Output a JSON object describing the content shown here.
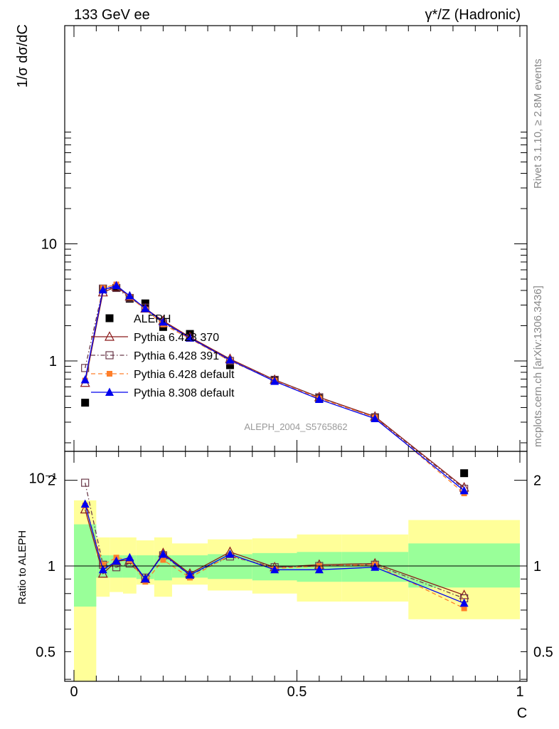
{
  "header": {
    "left": "133 GeV ee",
    "right": "γ*/Z (Hadronic)"
  },
  "side": {
    "rivet": "Rivet 3.1.10, ≥ 2.8M events",
    "mcplots": "mcplots.cern.ch [arXiv:1306.3436]"
  },
  "analysis_id": "ALEPH_2004_S5765862",
  "colors": {
    "data": "#000000",
    "p370": "#8b1a1a",
    "p391": "#6b3a4a",
    "p6def": "#ff7f2a",
    "p8def": "#0000ee",
    "band_inner": "#99ff99",
    "band_outer": "#ffff99"
  },
  "chart_data": [
    {
      "type": "line",
      "panel": "main",
      "ylabel": "1/σ  dσ/dC",
      "xlim": [
        0,
        1
      ],
      "ylim": [
        0.02,
        90
      ],
      "yscale": "log",
      "yticks": [
        "10⁻¹",
        "1",
        "10"
      ],
      "legend_position": "lower-left",
      "x": [
        0.025,
        0.065,
        0.095,
        0.125,
        0.16,
        0.2,
        0.26,
        0.35,
        0.45,
        0.55,
        0.675,
        0.875
      ],
      "series": [
        {
          "name": "ALEPH",
          "key": "data",
          "marker": "square-filled",
          "values": [
            0.44,
            4.1,
            4.2,
            3.4,
            3.1,
            1.95,
            1.7,
            0.92,
            0.69,
            0.48,
            0.33,
            0.11
          ]
        },
        {
          "name": "Pythia 6.428 370",
          "key": "p370",
          "marker": "triangle-open",
          "dash": "solid",
          "values": [
            0.65,
            3.85,
            4.3,
            3.55,
            2.8,
            2.2,
            1.6,
            1.04,
            0.69,
            0.49,
            0.335,
            0.083
          ]
        },
        {
          "name": "Pythia 6.428 391",
          "key": "p391",
          "marker": "square-open",
          "dash": "dashdot",
          "values": [
            0.87,
            4.15,
            4.2,
            3.45,
            2.85,
            2.1,
            1.58,
            1.0,
            0.69,
            0.49,
            0.33,
            0.081
          ]
        },
        {
          "name": "Pythia 6.428 default",
          "key": "p6def",
          "marker": "square-filled-small",
          "dash": "dashed",
          "values": [
            0.68,
            4.2,
            4.5,
            3.5,
            2.75,
            2.05,
            1.55,
            1.0,
            0.68,
            0.48,
            0.33,
            0.074
          ]
        },
        {
          "name": "Pythia 8.308 default",
          "key": "p8def",
          "marker": "triangle-filled",
          "dash": "solid",
          "values": [
            0.69,
            4.05,
            4.4,
            3.6,
            2.8,
            2.15,
            1.57,
            1.02,
            0.67,
            0.47,
            0.322,
            0.078
          ]
        }
      ]
    },
    {
      "type": "line",
      "panel": "ratio",
      "xlabel": "C",
      "ylabel": "Ratio to ALEPH",
      "xlim": [
        0,
        1
      ],
      "ylim": [
        0.35,
        2.35
      ],
      "yscale": "log",
      "xticks": [
        "0",
        "0.5",
        "1"
      ],
      "yticks": [
        "0.5",
        "1",
        "2"
      ],
      "bands": {
        "edges": [
          0,
          0.05,
          0.08,
          0.11,
          0.14,
          0.18,
          0.22,
          0.3,
          0.4,
          0.5,
          0.6,
          0.75,
          1.0
        ],
        "inner": [
          [
            0.72,
            1.4
          ],
          [
            0.91,
            1.09
          ],
          [
            0.91,
            1.09
          ],
          [
            0.91,
            1.09
          ],
          [
            0.9,
            1.09
          ],
          [
            0.89,
            1.09
          ],
          [
            0.91,
            1.09
          ],
          [
            0.9,
            1.1
          ],
          [
            0.89,
            1.11
          ],
          [
            0.88,
            1.12
          ],
          [
            0.88,
            1.12
          ],
          [
            0.84,
            1.2
          ]
        ],
        "outer": [
          [
            0.3,
            1.7
          ],
          [
            0.78,
            1.26
          ],
          [
            0.81,
            1.26
          ],
          [
            0.8,
            1.26
          ],
          [
            0.86,
            1.23
          ],
          [
            0.78,
            1.26
          ],
          [
            0.86,
            1.2
          ],
          [
            0.82,
            1.24
          ],
          [
            0.8,
            1.25
          ],
          [
            0.75,
            1.29
          ],
          [
            0.75,
            1.29
          ],
          [
            0.65,
            1.45
          ]
        ]
      },
      "x": [
        0.025,
        0.065,
        0.095,
        0.125,
        0.16,
        0.2,
        0.26,
        0.35,
        0.45,
        0.55,
        0.675,
        0.875
      ],
      "series": [
        {
          "name": "Pythia 6.428 370",
          "key": "p370",
          "marker": "triangle-open",
          "dash": "solid",
          "values": [
            1.58,
            0.94,
            1.04,
            1.05,
            0.9,
            1.11,
            0.94,
            1.12,
            0.99,
            1.01,
            1.02,
            0.79
          ]
        },
        {
          "name": "Pythia 6.428 391",
          "key": "p391",
          "marker": "square-open",
          "dash": "dashdot",
          "values": [
            1.96,
            1.01,
            0.99,
            1.02,
            0.91,
            1.09,
            0.93,
            1.08,
            0.99,
            1.0,
            1.01,
            0.77
          ]
        },
        {
          "name": "Pythia 6.428 default",
          "key": "p6def",
          "marker": "square-filled-small",
          "dash": "dashed",
          "values": [
            1.63,
            1.01,
            1.07,
            1.05,
            0.88,
            1.05,
            0.91,
            1.09,
            0.98,
            1.0,
            1.01,
            0.71
          ]
        },
        {
          "name": "Pythia 8.308 default",
          "key": "p8def",
          "marker": "triangle-filled",
          "dash": "solid",
          "values": [
            1.65,
            0.97,
            1.04,
            1.07,
            0.9,
            1.1,
            0.93,
            1.1,
            0.97,
            0.97,
            0.99,
            0.74
          ]
        }
      ]
    }
  ]
}
